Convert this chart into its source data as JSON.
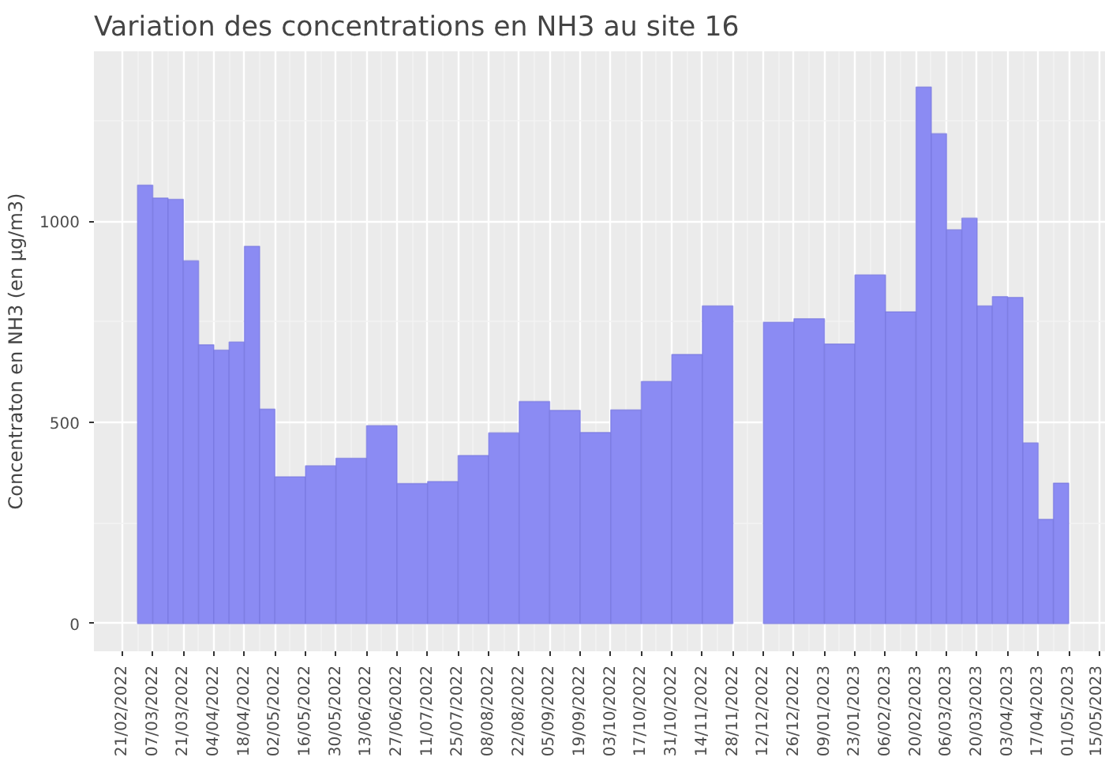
{
  "chart_data": {
    "type": "histogram",
    "title": "Variation des concentrations en NH3 au site 16",
    "ylabel": "Concentraton en NH3 (en µg/m3)",
    "bins": [
      "2022-02-28",
      "2022-03-07",
      "2022-03-14",
      "2022-03-21",
      "2022-03-28",
      "2022-04-04",
      "2022-04-11",
      "2022-04-18",
      "2022-04-25",
      "2022-05-02",
      "2022-05-16",
      "2022-05-30",
      "2022-06-13",
      "2022-06-27",
      "2022-07-11",
      "2022-07-25",
      "2022-08-08",
      "2022-08-22",
      "2022-09-05",
      "2022-09-19",
      "2022-10-03",
      "2022-10-17",
      "2022-10-31",
      "2022-11-14",
      "2022-11-28",
      "2022-12-12",
      "2022-12-26",
      "2023-01-09",
      "2023-01-23",
      "2023-02-06",
      "2023-02-20",
      "2023-02-27",
      "2023-03-06",
      "2023-03-13",
      "2023-03-20",
      "2023-03-27",
      "2023-04-03",
      "2023-04-10",
      "2023-04-17",
      "2023-04-24",
      "2023-05-01"
    ],
    "values": [
      1090,
      1058,
      1055,
      902,
      693,
      680,
      700,
      938,
      533,
      365,
      392,
      411,
      492,
      348,
      353,
      418,
      474,
      552,
      530,
      475,
      531,
      602,
      669,
      790,
      null,
      749,
      758,
      695,
      867,
      775,
      1334,
      1218,
      979,
      1008,
      790,
      813,
      811,
      449,
      259,
      349
    ],
    "color": "#8b8bf3",
    "xlim": [
      "2022-02-08",
      "2023-05-18"
    ],
    "ylim": [
      -69,
      1423
    ],
    "xticks": [
      {
        "value": "2022-02-21",
        "label": "21/02/2022"
      },
      {
        "value": "2022-03-07",
        "label": "07/03/2022"
      },
      {
        "value": "2022-03-21",
        "label": "21/03/2022"
      },
      {
        "value": "2022-04-04",
        "label": "04/04/2022"
      },
      {
        "value": "2022-04-18",
        "label": "18/04/2022"
      },
      {
        "value": "2022-05-02",
        "label": "02/05/2022"
      },
      {
        "value": "2022-05-16",
        "label": "16/05/2022"
      },
      {
        "value": "2022-05-30",
        "label": "30/05/2022"
      },
      {
        "value": "2022-06-13",
        "label": "13/06/2022"
      },
      {
        "value": "2022-06-27",
        "label": "27/06/2022"
      },
      {
        "value": "2022-07-11",
        "label": "11/07/2022"
      },
      {
        "value": "2022-07-25",
        "label": "25/07/2022"
      },
      {
        "value": "2022-08-08",
        "label": "08/08/2022"
      },
      {
        "value": "2022-08-22",
        "label": "22/08/2022"
      },
      {
        "value": "2022-09-05",
        "label": "05/09/2022"
      },
      {
        "value": "2022-09-19",
        "label": "19/09/2022"
      },
      {
        "value": "2022-10-03",
        "label": "03/10/2022"
      },
      {
        "value": "2022-10-17",
        "label": "17/10/2022"
      },
      {
        "value": "2022-10-31",
        "label": "31/10/2022"
      },
      {
        "value": "2022-11-14",
        "label": "14/11/2022"
      },
      {
        "value": "2022-11-28",
        "label": "28/11/2022"
      },
      {
        "value": "2022-12-12",
        "label": "12/12/2022"
      },
      {
        "value": "2022-12-26",
        "label": "26/12/2022"
      },
      {
        "value": "2023-01-09",
        "label": "09/01/2023"
      },
      {
        "value": "2023-01-23",
        "label": "23/01/2023"
      },
      {
        "value": "2023-02-06",
        "label": "06/02/2023"
      },
      {
        "value": "2023-02-20",
        "label": "20/02/2023"
      },
      {
        "value": "2023-03-06",
        "label": "06/03/2023"
      },
      {
        "value": "2023-03-20",
        "label": "20/03/2023"
      },
      {
        "value": "2023-04-03",
        "label": "03/04/2023"
      },
      {
        "value": "2023-04-17",
        "label": "17/04/2023"
      },
      {
        "value": "2023-05-01",
        "label": "01/05/2023"
      },
      {
        "value": "2023-05-15",
        "label": "15/05/2023"
      }
    ],
    "yticks": [
      0,
      500,
      1000
    ],
    "grid": true
  }
}
